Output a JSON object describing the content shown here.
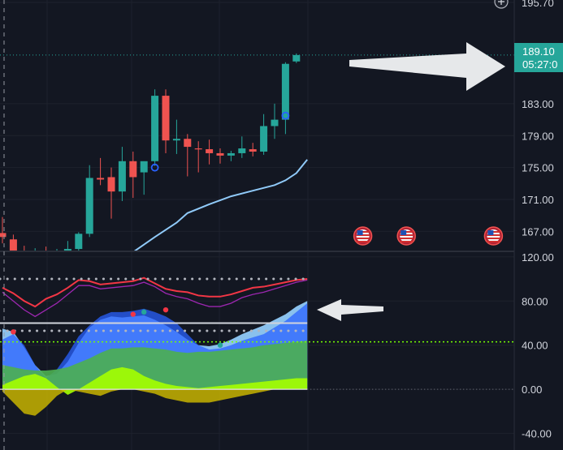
{
  "chart_data": [
    {
      "type": "candlestick",
      "panel": "price",
      "y_axis_ticks": [
        "195.70",
        "183.00",
        "179.00",
        "175.00",
        "171.00",
        "167.00"
      ],
      "ylim": [
        164.5,
        196
      ],
      "last_price": {
        "value": "189.10",
        "countdown": "05:27:0"
      },
      "candles": [
        {
          "o": 166.8,
          "h": 168.8,
          "l": 165.5,
          "c": 166.3
        },
        {
          "o": 166.0,
          "h": 166.6,
          "l": 163.8,
          "c": 164.4
        },
        {
          "o": 164.4,
          "h": 165.2,
          "l": 163.5,
          "c": 164.0
        },
        {
          "o": 164.0,
          "h": 164.9,
          "l": 163.2,
          "c": 164.3
        },
        {
          "o": 164.3,
          "h": 165.1,
          "l": 163.6,
          "c": 164.0
        },
        {
          "o": 164.0,
          "h": 164.8,
          "l": 163.3,
          "c": 164.6
        },
        {
          "o": 164.6,
          "h": 165.8,
          "l": 164.2,
          "c": 164.8
        },
        {
          "o": 164.8,
          "h": 166.9,
          "l": 164.6,
          "c": 166.7
        },
        {
          "o": 166.7,
          "h": 175.3,
          "l": 166.3,
          "c": 173.7
        },
        {
          "o": 173.7,
          "h": 176.2,
          "l": 172.8,
          "c": 173.5
        },
        {
          "o": 173.8,
          "h": 175.0,
          "l": 168.6,
          "c": 172.0
        },
        {
          "o": 172.0,
          "h": 177.6,
          "l": 170.8,
          "c": 175.8
        },
        {
          "o": 175.8,
          "h": 177.0,
          "l": 171.2,
          "c": 173.8
        },
        {
          "o": 174.4,
          "h": 175.7,
          "l": 171.6,
          "c": 175.8
        },
        {
          "o": 175.8,
          "h": 184.8,
          "l": 175.2,
          "c": 184.0
        },
        {
          "o": 184.0,
          "h": 184.8,
          "l": 176.8,
          "c": 178.4
        },
        {
          "o": 178.4,
          "h": 181.0,
          "l": 176.7,
          "c": 178.6
        },
        {
          "o": 178.6,
          "h": 179.2,
          "l": 173.9,
          "c": 177.6
        },
        {
          "o": 177.4,
          "h": 178.3,
          "l": 174.4,
          "c": 177.3
        },
        {
          "o": 177.3,
          "h": 178.5,
          "l": 175.4,
          "c": 176.8
        },
        {
          "o": 176.8,
          "h": 177.4,
          "l": 175.5,
          "c": 176.5
        },
        {
          "o": 176.5,
          "h": 177.1,
          "l": 175.8,
          "c": 176.8
        },
        {
          "o": 176.8,
          "h": 178.9,
          "l": 176.2,
          "c": 177.4
        },
        {
          "o": 177.3,
          "h": 178.1,
          "l": 176.4,
          "c": 177.0
        },
        {
          "o": 177.0,
          "h": 181.7,
          "l": 176.6,
          "c": 180.2
        },
        {
          "o": 180.2,
          "h": 183.0,
          "l": 178.6,
          "c": 181.0
        },
        {
          "o": 181.0,
          "h": 188.2,
          "l": 179.2,
          "c": 188.0
        },
        {
          "o": 188.3,
          "h": 189.3,
          "l": 188.1,
          "c": 189.1
        }
      ],
      "moving_average": [
        {
          "x": 12,
          "y": 164.4
        },
        {
          "x": 14,
          "y": 166.3
        },
        {
          "x": 16,
          "y": 168.1
        },
        {
          "x": 17,
          "y": 169.3
        },
        {
          "x": 19,
          "y": 170.4
        },
        {
          "x": 21,
          "y": 171.4
        },
        {
          "x": 23,
          "y": 172.1
        },
        {
          "x": 25,
          "y": 172.8
        },
        {
          "x": 26,
          "y": 173.4
        },
        {
          "x": 27,
          "y": 174.3
        },
        {
          "x": 28,
          "y": 176.0
        }
      ],
      "markers": [
        {
          "x": 14,
          "y": 175.0,
          "shape": "ring",
          "color": "#2962ff"
        },
        {
          "x": 26,
          "y": 181.5,
          "shape": "ring",
          "color": "#2962ff"
        }
      ],
      "event_icons": [
        {
          "name": "us-flag-icon",
          "x": 34
        },
        {
          "name": "us-flag-icon",
          "x": 38
        },
        {
          "name": "us-flag-icon",
          "x": 46
        }
      ]
    },
    {
      "type": "area",
      "panel": "oscillator",
      "y_axis_ticks": [
        "120.00",
        "80.00",
        "40.00",
        "0.00",
        "-40.00"
      ],
      "ylim": [
        -55,
        125
      ],
      "reference_levels": {
        "dotted_upper": 100,
        "dotted_lower": 53,
        "solid": 60,
        "green_dotted": 43,
        "zero": 0
      },
      "series": [
        {
          "color": "#f23645",
          "values": [
            92,
            87,
            80,
            75,
            82,
            86,
            92,
            99,
            98,
            95,
            96,
            97,
            98,
            101,
            96,
            91,
            89,
            88,
            85,
            84,
            84,
            86,
            89,
            92,
            93,
            95,
            97,
            99,
            100
          ]
        },
        {
          "color": "#9c27b0",
          "values": [
            88,
            80,
            72,
            66,
            72,
            78,
            86,
            94,
            94,
            91,
            92,
            93,
            94,
            97,
            93,
            87,
            84,
            82,
            78,
            75,
            75,
            78,
            83,
            86,
            88,
            91,
            94,
            97,
            99
          ]
        },
        {
          "color": "#2962ff",
          "values": [
            45,
            50,
            40,
            22,
            10,
            18,
            32,
            48,
            58,
            66,
            70,
            70,
            71,
            73,
            70,
            66,
            60,
            50,
            40,
            36,
            37,
            40,
            44,
            47,
            50,
            56,
            62,
            70,
            78
          ]
        },
        {
          "color": "#90caf9",
          "values": [
            55,
            52,
            38,
            22,
            12,
            14,
            25,
            42,
            56,
            63,
            66,
            65,
            66,
            67,
            63,
            58,
            52,
            45,
            40,
            39,
            41,
            45,
            50,
            54,
            58,
            63,
            68,
            75,
            80
          ]
        },
        {
          "color": "#4caf50",
          "values": [
            22,
            20,
            18,
            17,
            17,
            18,
            20,
            24,
            28,
            33,
            37,
            37,
            38,
            38,
            37,
            36,
            34,
            33,
            34,
            34,
            35,
            36,
            37,
            38,
            40,
            41,
            42,
            43,
            44
          ]
        },
        {
          "color": "#a5ff00",
          "values": [
            4,
            8,
            12,
            14,
            10,
            2,
            -5,
            0,
            6,
            12,
            18,
            20,
            18,
            12,
            8,
            5,
            3,
            2,
            1,
            2,
            3,
            4,
            5,
            6,
            7,
            8,
            9,
            10,
            10
          ]
        },
        {
          "color": "#c8b400",
          "values": [
            -2,
            -12,
            -22,
            -24,
            -16,
            -6,
            0,
            -2,
            -4,
            -6,
            -2,
            0,
            0,
            -2,
            -4,
            -8,
            -10,
            -12,
            -12,
            -12,
            -10,
            -8,
            -6,
            -4,
            -2,
            0,
            0,
            0,
            0
          ]
        }
      ],
      "dots": [
        {
          "x": 1,
          "y": 52,
          "color": "#f23645"
        },
        {
          "x": 12,
          "y": 68,
          "color": "#f23645"
        },
        {
          "x": 13,
          "y": 70,
          "color": "#26a69a"
        },
        {
          "x": 15,
          "y": 72,
          "color": "#f23645"
        },
        {
          "x": 20,
          "y": 40,
          "color": "#26a69a"
        }
      ]
    }
  ],
  "colors": {
    "background": "#131722",
    "grid": "#1e222d",
    "up": "#26a69a",
    "down": "#ef5350",
    "badge": "#26a69a",
    "annotation_arrow": "#e0e3e6"
  },
  "icons": {
    "top_right": "plus-icon"
  }
}
